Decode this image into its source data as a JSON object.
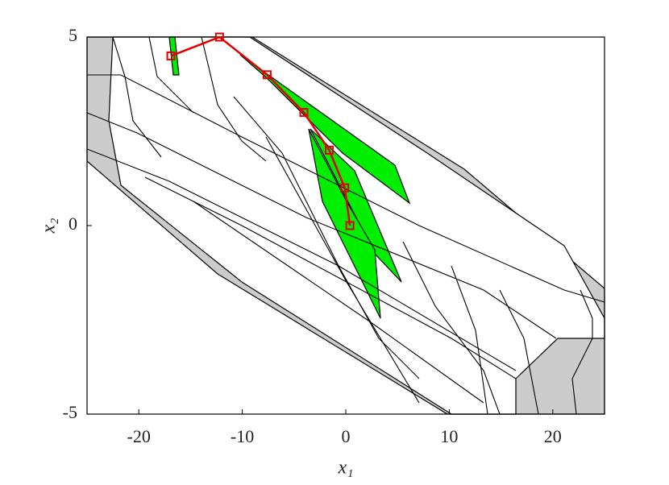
{
  "chart_data": {
    "type": "line",
    "xlabel": "x₁",
    "ylabel": "x₂",
    "xlim": [
      -25,
      25
    ],
    "ylim": [
      -5,
      5
    ],
    "xticks": [
      -20,
      -10,
      0,
      10,
      20
    ],
    "yticks": [
      -5,
      0,
      5
    ],
    "series": [
      {
        "color": "#e00000",
        "x": [
          -16.9,
          -12.2,
          -7.6,
          -4.05,
          -1.6,
          -0.1,
          0.4
        ],
        "values": [
          4.5,
          5,
          4,
          3,
          2,
          1,
          0
        ]
      }
    ]
  }
}
